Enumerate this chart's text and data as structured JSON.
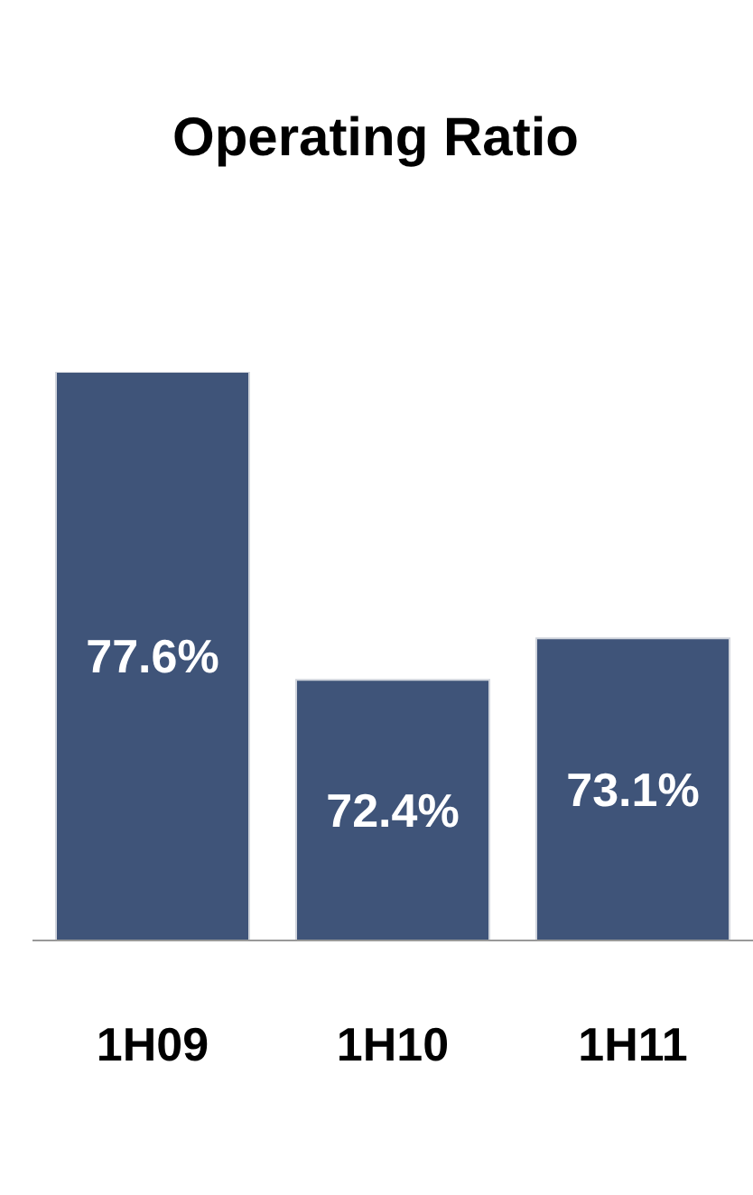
{
  "chart_data": {
    "type": "bar",
    "title": "Operating Ratio",
    "categories": [
      "1H09",
      "1H10",
      "1H11"
    ],
    "values": [
      77.6,
      72.4,
      73.1
    ],
    "value_labels": [
      "77.6%",
      "72.4%",
      "73.1%"
    ],
    "color": "#3f5479",
    "ylim": [
      68,
      77.6
    ],
    "tick_labels": "x"
  }
}
